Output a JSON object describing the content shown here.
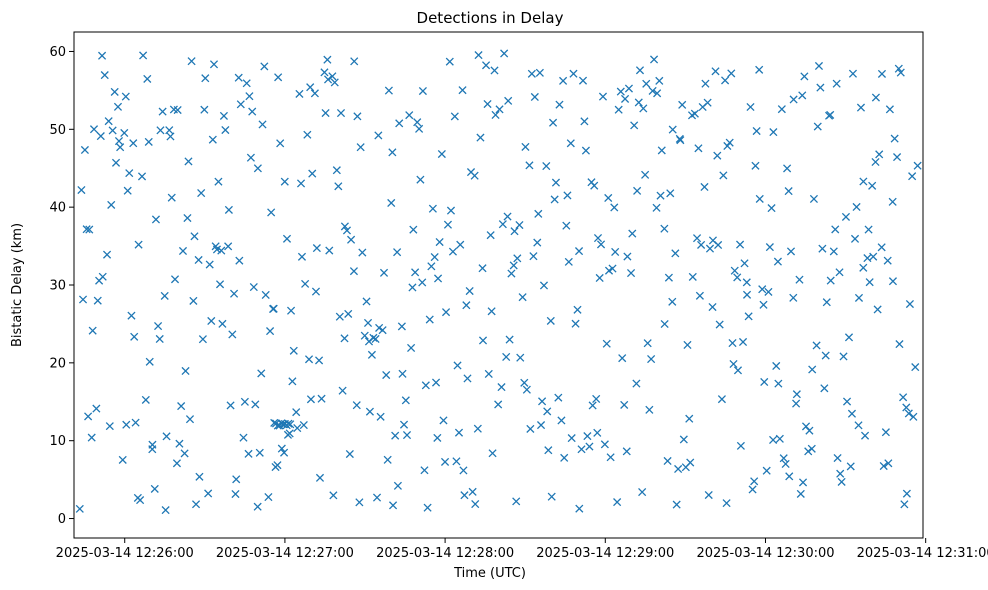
{
  "chart_data": {
    "type": "scatter",
    "title": "Detections in Delay",
    "xlabel": "Time (UTC)",
    "ylabel": "Bistatic Delay (km)",
    "marker": "x",
    "color": "#1f77b4",
    "grid": false,
    "x_is_time": true,
    "xlim": [
      "2025-03-14 12:25:41",
      "2025-03-14 12:30:59"
    ],
    "ylim": [
      -2.5,
      62.5
    ],
    "x_ticks": [
      "2025-03-14 12:26:00",
      "2025-03-14 12:27:00",
      "2025-03-14 12:28:00",
      "2025-03-14 12:29:00",
      "2025-03-14 12:30:00",
      "2025-03-14 12:31:00"
    ],
    "y_ticks": [
      0,
      10,
      20,
      30,
      40,
      50,
      60
    ],
    "x_start": "2025-03-14 12:25:43",
    "x_end": "2025-03-14 12:30:57",
    "point_count": 540,
    "cluster": {
      "x_from": "2025-03-14 12:26:56",
      "x_to": "2025-03-14 12:27:02",
      "y": 12.1,
      "count": 10
    }
  }
}
